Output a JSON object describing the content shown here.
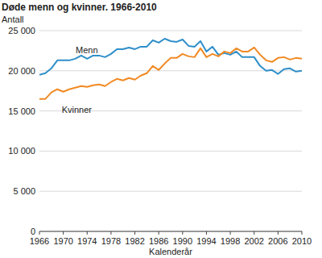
{
  "chart_data": {
    "type": "line",
    "title": "Døde menn og kvinner. 1966-2010",
    "y_label": "Antall",
    "x_label": "Kalenderår",
    "x": [
      1966,
      1967,
      1968,
      1969,
      1970,
      1971,
      1972,
      1973,
      1974,
      1975,
      1976,
      1977,
      1978,
      1979,
      1980,
      1981,
      1982,
      1983,
      1984,
      1985,
      1986,
      1987,
      1988,
      1989,
      1990,
      1991,
      1992,
      1993,
      1994,
      1995,
      1996,
      1997,
      1998,
      1999,
      2000,
      2001,
      2002,
      2003,
      2004,
      2005,
      2006,
      2007,
      2008,
      2009,
      2010
    ],
    "series": [
      {
        "name": "Menn",
        "color": "#2f8fc9",
        "values": [
          19500,
          19700,
          20300,
          21300,
          21300,
          21300,
          21500,
          21900,
          21500,
          21900,
          21900,
          21700,
          22100,
          22700,
          22700,
          22900,
          22700,
          23000,
          23000,
          23800,
          23500,
          24000,
          23700,
          23600,
          23900,
          23100,
          23000,
          23700,
          22400,
          23000,
          22000,
          22200,
          22000,
          22400,
          21700,
          21700,
          21700,
          20600,
          20000,
          20100,
          19600,
          20200,
          20300,
          19900,
          20000
        ]
      },
      {
        "name": "Kvinner",
        "color": "#f08a24",
        "values": [
          16500,
          16500,
          17300,
          17700,
          17400,
          17700,
          17900,
          18100,
          18000,
          18200,
          18300,
          18100,
          18600,
          19000,
          18800,
          19100,
          18900,
          19400,
          19700,
          20600,
          20100,
          20900,
          21600,
          21600,
          22100,
          21800,
          21700,
          22800,
          21700,
          22100,
          21800,
          22400,
          22200,
          22800,
          22400,
          22400,
          22900,
          22000,
          21300,
          21100,
          21600,
          21700,
          21400,
          21600,
          21500
        ]
      }
    ],
    "xlim": [
      1966,
      2010
    ],
    "xticks": [
      1966,
      1970,
      1974,
      1978,
      1982,
      1986,
      1990,
      1994,
      1998,
      2002,
      2006,
      2010
    ],
    "ylim": [
      0,
      25000
    ],
    "yticks": [
      0,
      {
        "value": 5000,
        "label": "5 000"
      },
      {
        "value": 10000,
        "label": "10 000"
      },
      {
        "value": 15000,
        "label": "15 000"
      },
      {
        "value": 20000,
        "label": "20 000"
      },
      {
        "value": 25000,
        "label": "25 000"
      }
    ],
    "grid": true
  }
}
